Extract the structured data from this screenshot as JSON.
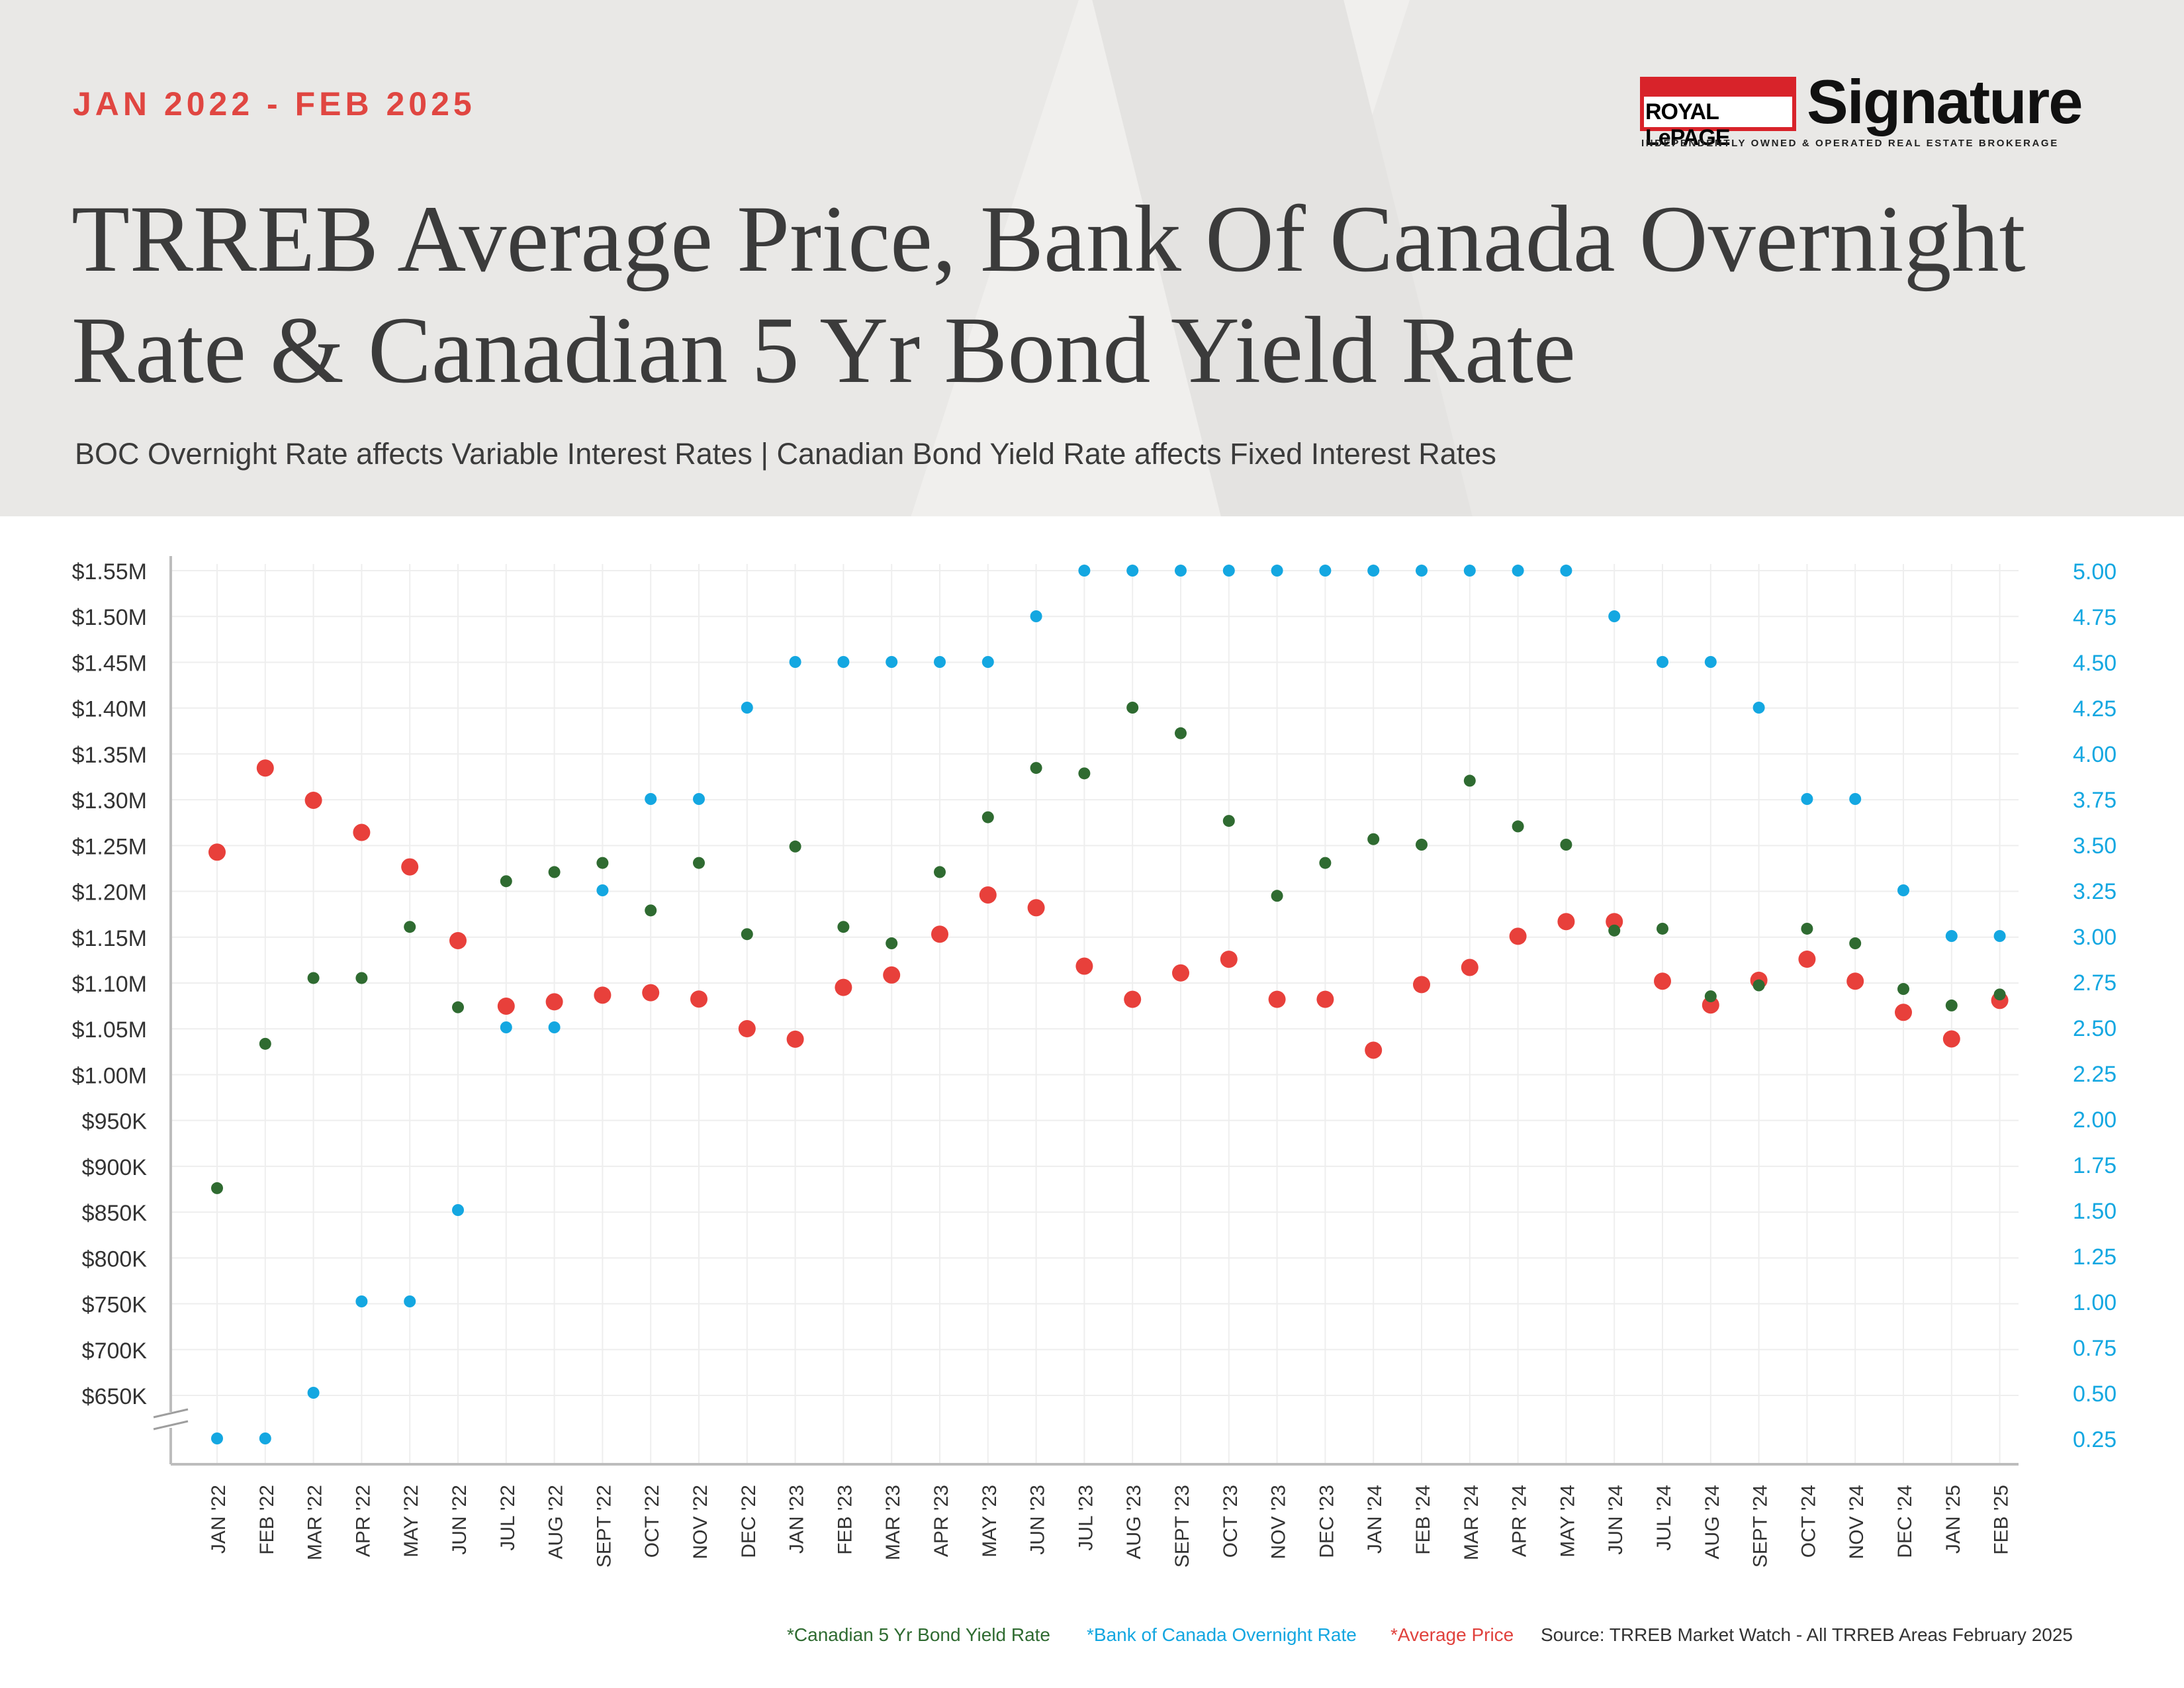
{
  "header": {
    "date_range": "JAN 2022 - FEB 2025",
    "title": "TRREB Average Price, Bank Of Canada Overnight Rate & Canadian 5 Yr Bond Yield Rate",
    "subtitle": "BOC Overnight Rate affects Variable Interest Rates  |  Canadian Bond Yield Rate affects Fixed Interest Rates"
  },
  "logo": {
    "brand": "ROYAL LePAGE",
    "name": "Signature",
    "tagline": "INDEPENDENTLY OWNED & OPERATED REAL ESTATE BROKERAGE"
  },
  "legend": {
    "bond": "*Canadian 5 Yr Bond Yield Rate",
    "boc": "*Bank of Canada Overnight Rate",
    "price": "*Average Price",
    "source": "Source: TRREB Market Watch - All TRREB Areas February 2025"
  },
  "colors": {
    "price": "#e8403b",
    "boc": "#14a7e1",
    "bond": "#2f6b31",
    "accent": "#e04641",
    "grid": "#eeeeee"
  },
  "chart_data": {
    "type": "scatter",
    "categories": [
      "JAN '22",
      "FEB '22",
      "MAR '22",
      "APR '22",
      "MAY '22",
      "JUN '22",
      "JUL '22",
      "AUG '22",
      "SEPT '22",
      "OCT '22",
      "NOV '22",
      "DEC '22",
      "JAN '23",
      "FEB '23",
      "MAR '23",
      "APR '23",
      "MAY '23",
      "JUN '23",
      "JUL '23",
      "AUG '23",
      "SEPT '23",
      "OCT '23",
      "NOV '23",
      "DEC '23",
      "JAN '24",
      "FEB '24",
      "MAR '24",
      "APR '24",
      "MAY '24",
      "JUN '24",
      "JUL '24",
      "AUG '24",
      "SEPT '24",
      "OCT '24",
      "NOV '24",
      "DEC '24",
      "JAN '25",
      "FEB '25"
    ],
    "left_axis": {
      "ticks": [
        "$1.55M",
        "$1.50M",
        "$1.45M",
        "$1.40M",
        "$1.35M",
        "$1.30M",
        "$1.25M",
        "$1.20M",
        "$1.15M",
        "$1.10M",
        "$1.05M",
        "$1.00M",
        "$950K",
        "$900K",
        "$850K",
        "$800K",
        "$750K",
        "$700K",
        "$650K"
      ],
      "range": [
        650000,
        1550000
      ],
      "broken_below": 650000
    },
    "right_axis": {
      "ticks": [
        "5.00",
        "4.75",
        "4.50",
        "4.25",
        "4.00",
        "3.75",
        "3.50",
        "3.25",
        "3.00",
        "2.75",
        "2.50",
        "2.25",
        "2.00",
        "1.75",
        "1.50",
        "1.25",
        "1.00",
        "0.75",
        "0.50",
        "0.25"
      ],
      "range": [
        0.25,
        5.0
      ]
    },
    "series": [
      {
        "axis": "left",
        "values": [
          1242793,
          1334544,
          1299394,
          1264304,
          1226714,
          1146254,
          1074754,
          1079500,
          1086762,
          1089428,
          1082496,
          1050141,
          1038668,
          1095183,
          1108720,
          1153269,
          1196101,
          1182120,
          1118374,
          1082179,
          1110979,
          1125928,
          1082179,
          1082179,
          1026703,
          1098287,
          1117000,
          1151000,
          1167000,
          1167000,
          1102000,
          1076000,
          1103000,
          1126000,
          1102000,
          1068000,
          1039000,
          1081000
        ]
      },
      {
        "axis": "right",
        "values": [
          0.25,
          0.25,
          0.5,
          1.0,
          1.0,
          1.5,
          2.5,
          2.5,
          3.25,
          3.75,
          3.75,
          4.25,
          4.5,
          4.5,
          4.5,
          4.5,
          4.5,
          4.75,
          5.0,
          5.0,
          5.0,
          5.0,
          5.0,
          5.0,
          5.0,
          5.0,
          5.0,
          5.0,
          5.0,
          4.75,
          4.5,
          4.5,
          4.25,
          3.75,
          3.75,
          3.25,
          3.0,
          3.0
        ]
      },
      {
        "axis": "right",
        "values": [
          1.62,
          2.41,
          2.77,
          2.77,
          3.05,
          2.61,
          3.3,
          3.35,
          3.4,
          3.14,
          3.4,
          3.01,
          3.49,
          3.05,
          2.96,
          3.35,
          3.65,
          3.92,
          3.89,
          4.25,
          4.11,
          3.63,
          3.22,
          3.4,
          3.53,
          3.5,
          3.85,
          3.6,
          3.5,
          3.03,
          3.04,
          2.67,
          2.73,
          3.04,
          2.96,
          2.71,
          2.62,
          2.68
        ]
      }
    ],
    "grid": true
  }
}
